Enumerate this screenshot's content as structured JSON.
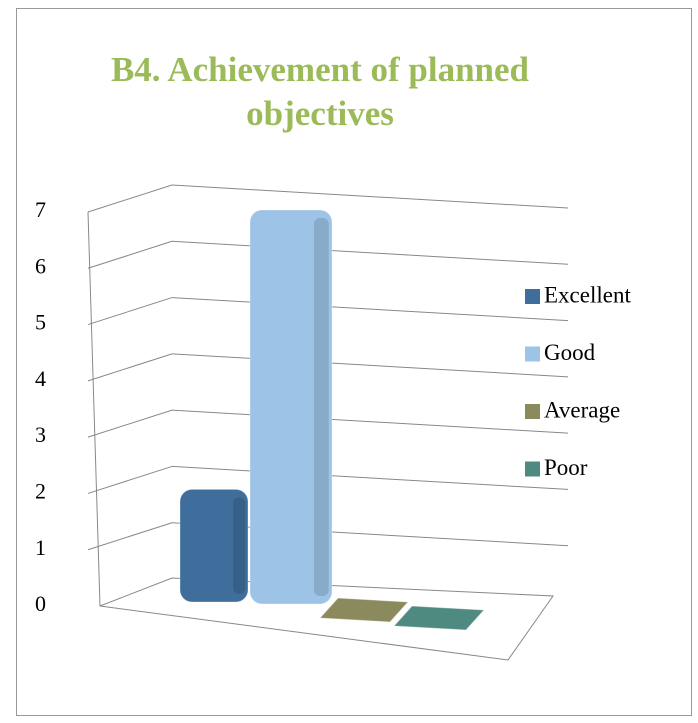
{
  "chart_data": {
    "type": "bar3d",
    "title": "B4. Achievement of planned objectives",
    "series": [
      {
        "name": "Excellent",
        "color": "#3f6e9c",
        "values": [
          2
        ]
      },
      {
        "name": "Good",
        "color": "#9dc3e6",
        "values": [
          7
        ]
      },
      {
        "name": "Average",
        "color": "#8a8a5c",
        "values": [
          0
        ]
      },
      {
        "name": "Poor",
        "color": "#4f8a80",
        "values": [
          0
        ]
      }
    ],
    "ylim": [
      0,
      7
    ],
    "yticks": [
      0,
      1,
      2,
      3,
      4,
      5,
      6,
      7
    ],
    "grid": true,
    "legend": "right"
  }
}
